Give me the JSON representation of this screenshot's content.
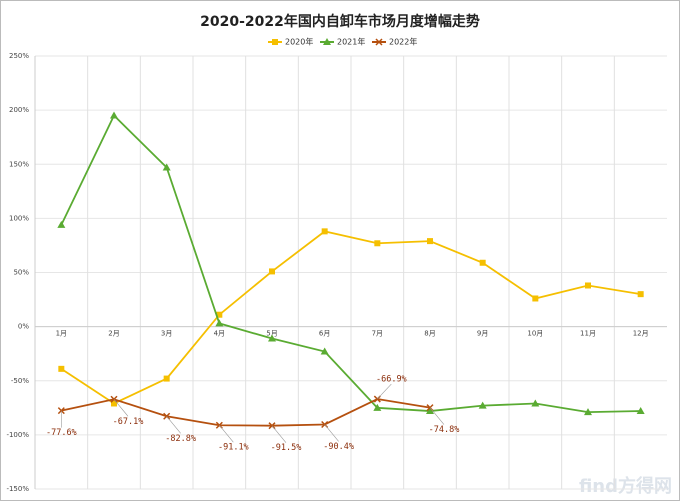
{
  "chart_data": {
    "type": "line",
    "title": "2020-2022年国内自卸车市场月度增幅走势",
    "categories": [
      "1月",
      "2月",
      "3月",
      "4月",
      "5月",
      "6月",
      "7月",
      "8月",
      "9月",
      "10月",
      "11月",
      "12月"
    ],
    "series": [
      {
        "name": "2020年",
        "color": "#f5bf00",
        "marker": "square",
        "values": [
          -39,
          -71,
          -48,
          11,
          51,
          88,
          77,
          79,
          59,
          26,
          38,
          30
        ]
      },
      {
        "name": "2021年",
        "color": "#5aab32",
        "marker": "triangle",
        "values": [
          94,
          195,
          147,
          3,
          -11,
          -23,
          -75,
          -78,
          -73,
          -71,
          -79,
          -78
        ]
      },
      {
        "name": "2022年",
        "color": "#b5500f",
        "marker": "x",
        "values": [
          -77.6,
          -67.1,
          -82.8,
          -91.1,
          -91.5,
          -90.4,
          -66.9,
          -74.8,
          null,
          null,
          null,
          null
        ],
        "value_labels": [
          "-77.6%",
          "-67.1%",
          "-82.8%",
          "-91.1%",
          "-91.5%",
          "-90.4%",
          "-66.9%",
          "-74.8%",
          null,
          null,
          null,
          null
        ]
      }
    ],
    "ylim": [
      -150,
      250
    ],
    "yticks": [
      {
        "value": -150,
        "label": "-150%"
      },
      {
        "value": -100,
        "label": "-100%"
      },
      {
        "value": -50,
        "label": "-50%"
      },
      {
        "value": 0,
        "label": "0%"
      },
      {
        "value": 50,
        "label": "50%"
      },
      {
        "value": 100,
        "label": "100%"
      },
      {
        "value": 150,
        "label": "150%"
      },
      {
        "value": 200,
        "label": "200%"
      },
      {
        "value": 250,
        "label": "250%"
      }
    ],
    "grid": true,
    "legend": "top",
    "watermark": "find方得网"
  }
}
